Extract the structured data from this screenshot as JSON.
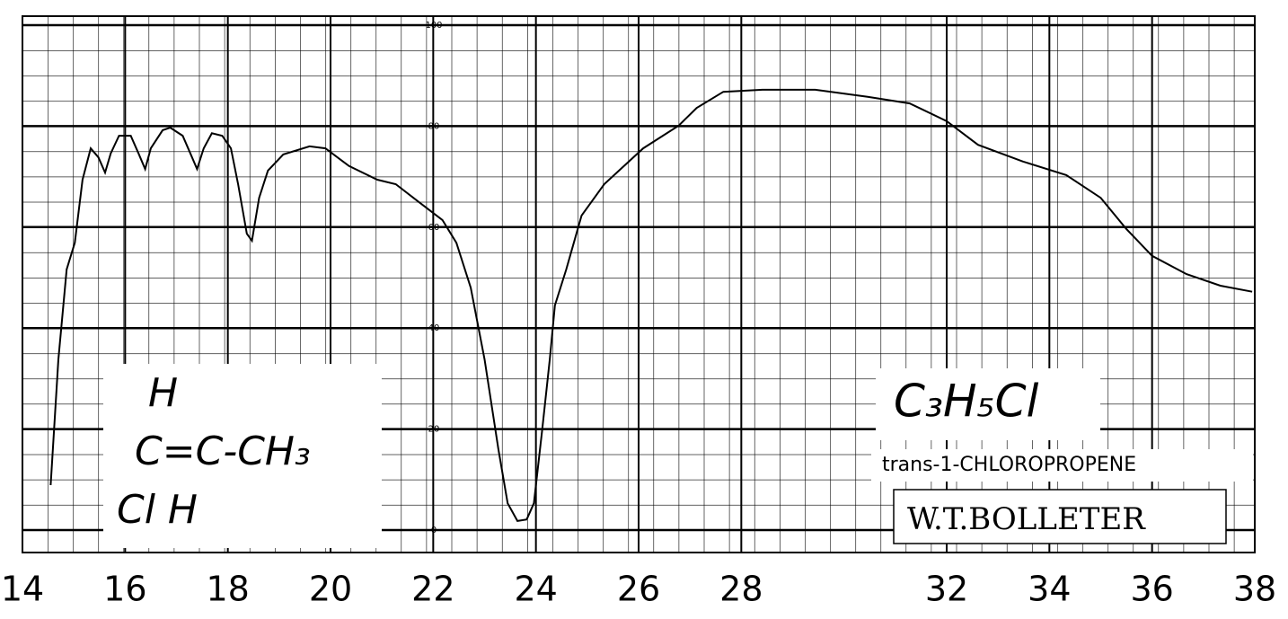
{
  "chart_data": {
    "type": "line",
    "x": [
      14.55,
      14.7,
      14.86,
      15.02,
      15.17,
      15.33,
      15.48,
      15.61,
      15.72,
      15.88,
      16.11,
      16.26,
      16.39,
      16.5,
      16.73,
      16.88,
      17.12,
      17.27,
      17.4,
      17.53,
      17.69,
      17.89,
      18.06,
      18.2,
      18.37,
      18.47,
      18.61,
      18.78,
      19.08,
      19.59,
      19.9,
      20.36,
      20.91,
      21.27,
      21.73,
      22.18,
      22.45,
      22.73,
      23.0,
      23.27,
      23.45,
      23.64,
      23.82,
      23.96,
      24.12,
      24.27,
      24.37,
      24.59,
      24.89,
      25.33,
      26.09,
      26.78,
      27.13,
      27.65,
      28.41,
      29.44,
      30.46,
      31.28,
      32.0,
      32.61,
      33.48,
      34.33,
      35.0,
      35.5,
      36.0,
      36.67,
      37.33,
      37.95
    ],
    "series": [
      {
        "color": "#000000",
        "values": [
          8.9,
          33.8,
          51.6,
          56.9,
          69.4,
          75.6,
          73.8,
          70.8,
          74.6,
          78.1,
          78.1,
          74.6,
          71.5,
          75.6,
          79.2,
          79.7,
          78.1,
          74.6,
          71.5,
          75.6,
          78.6,
          78.1,
          75.6,
          68.5,
          58.7,
          57.3,
          65.8,
          71.2,
          74.4,
          76.0,
          75.6,
          72.1,
          69.4,
          68.5,
          64.9,
          61.4,
          56.9,
          48.0,
          33.8,
          16.0,
          5.3,
          1.8,
          2.1,
          5.3,
          19.6,
          33.8,
          44.5,
          51.6,
          62.3,
          68.5,
          75.6,
          80.1,
          83.6,
          86.8,
          87.2,
          87.2,
          85.8,
          84.5,
          81.0,
          76.3,
          73.0,
          70.3,
          65.8,
          59.6,
          54.3,
          50.7,
          48.4,
          47.2
        ]
      }
    ],
    "xlim": [
      14,
      38
    ],
    "xticks": [
      14,
      16,
      18,
      20,
      22,
      24,
      26,
      28,
      32,
      34,
      36,
      38
    ],
    "ylim": [
      0,
      100
    ],
    "yticks": [
      0,
      20,
      40,
      60,
      80,
      100
    ],
    "grid": true,
    "structure": [
      "H",
      "C=C-CH₃",
      "Cl  H"
    ],
    "formula": "C₃H₅Cl",
    "compound": "trans-1-CHLOROPROPENE",
    "author": "W.T.BOLLETER"
  }
}
